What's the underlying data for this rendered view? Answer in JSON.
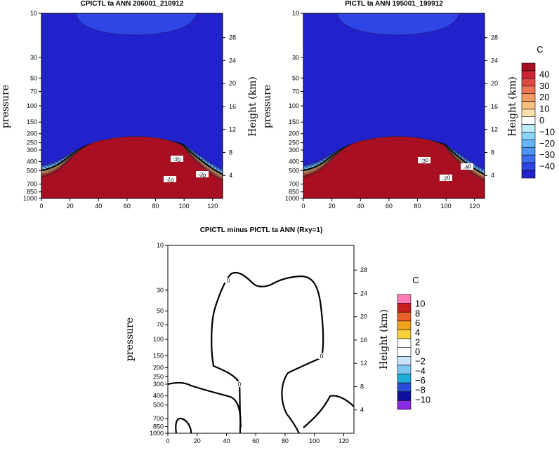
{
  "chart_data": [
    {
      "type": "contour",
      "title": "CPICTL ta ANN 206001_210912",
      "ylabel": "pressure",
      "y2label": "Height (km)",
      "x_ticks": [
        "0",
        "20",
        "40",
        "60",
        "80",
        "100",
        "120"
      ],
      "xlim": [
        0,
        127
      ],
      "p_ticks": [
        "10",
        "30",
        "50",
        "70",
        "100",
        "150",
        "200",
        "250",
        "300",
        "400",
        "500",
        "700",
        "850",
        "1000"
      ],
      "h_ticks": [
        "4",
        "8",
        "12",
        "16",
        "20",
        "24",
        "28"
      ],
      "colorbar": {
        "unit": "C",
        "labels": [
          "40",
          "30",
          "20",
          "10",
          "0",
          "−10",
          "−20",
          "−30",
          "−40"
        ]
      },
      "contour_labels": [
        "-30",
        "-30",
        "-10"
      ]
    },
    {
      "type": "contour",
      "title": "PICTL ta ANN 195001_199912",
      "ylabel": "pressure",
      "y2label": "Height (km)",
      "x_ticks": [
        "0",
        "20",
        "40",
        "60",
        "80",
        "100",
        "120"
      ],
      "xlim": [
        0,
        127
      ],
      "p_ticks": [
        "10",
        "30",
        "50",
        "70",
        "100",
        "150",
        "200",
        "250",
        "300",
        "400",
        "500",
        "700",
        "850",
        "1000"
      ],
      "h_ticks": [
        "4",
        "8",
        "12",
        "16",
        "20",
        "24",
        "28"
      ],
      "contour_labels": [
        "-30",
        "-40",
        "-20"
      ]
    },
    {
      "type": "contour",
      "title": "CPICTL minus PICTL ta ANN (Rxy=1)",
      "ylabel": "pressure",
      "y2label": "Height (km)",
      "x_ticks": [
        "0",
        "20",
        "40",
        "60",
        "80",
        "100",
        "120"
      ],
      "xlim": [
        0,
        127
      ],
      "p_ticks": [
        "10",
        "30",
        "50",
        "70",
        "100",
        "150",
        "200",
        "250",
        "300",
        "400",
        "500",
        "700",
        "850",
        "1000"
      ],
      "h_ticks": [
        "4",
        "8",
        "12",
        "16",
        "20",
        "24",
        "28"
      ],
      "colorbar": {
        "unit": "C",
        "labels": [
          "10",
          "8",
          "6",
          "4",
          "2",
          "0",
          "−2",
          "−4",
          "−6",
          "−8",
          "−10"
        ]
      },
      "contour_labels": [
        "0",
        "0",
        "0"
      ]
    }
  ],
  "colors": {
    "top_palette": [
      "#2222cc",
      "#2f45e6",
      "#3e6ef0",
      "#4f94f5",
      "#64b6f8",
      "#8dd4fb",
      "#bdeafd",
      "#ffffff",
      "#ffe0a8",
      "#fbbf7e",
      "#f49a62",
      "#ec7556",
      "#e04a44",
      "#cc2233",
      "#a80f22"
    ],
    "diff_palette": [
      "#8a2be2",
      "#1010a0",
      "#2a4dd8",
      "#1aaed8",
      "#7fc6f0",
      "#c8e2f8",
      "#ffffff",
      "#ffffff",
      "#f7d23a",
      "#f2a31a",
      "#e8602a",
      "#c81e1e",
      "#ff7ab4"
    ]
  }
}
